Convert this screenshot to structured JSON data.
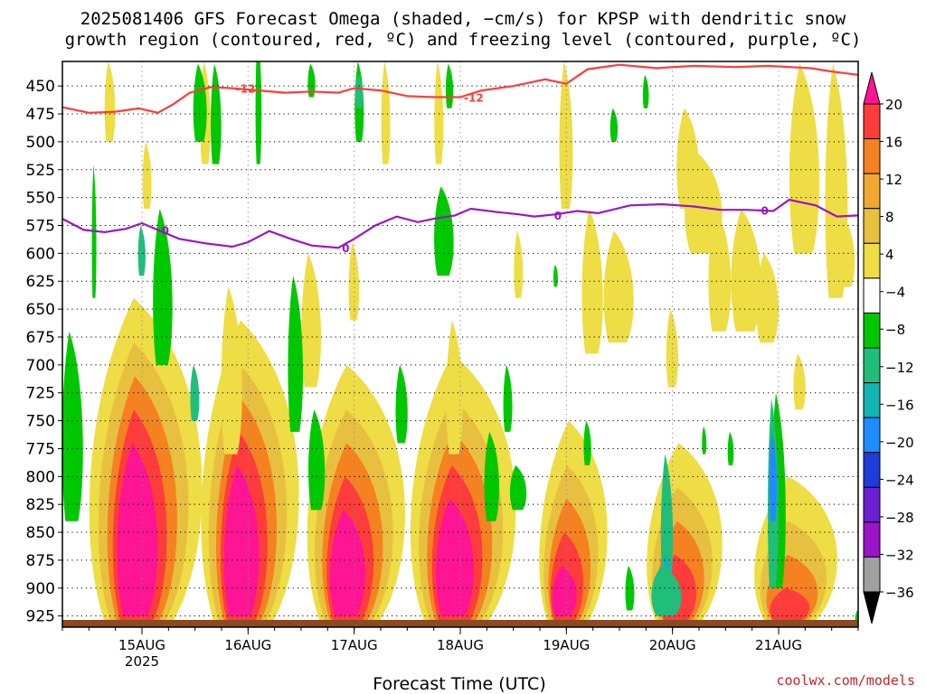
{
  "title": {
    "line1": "2025081406 GFS Forecast Omega (shaded, −cm/s) for KPSP with dendritic snow",
    "line2": "growth region (contoured, red, ºC) and freezing level (contoured, purple, ºC)"
  },
  "credit": "coolwx.com/models",
  "chart_data": {
    "type": "heatmap",
    "xlabel": "Forecast Time (UTC)",
    "ylabel": "",
    "x_ticks": [
      "15AUG",
      "16AUG",
      "17AUG",
      "18AUG",
      "19AUG",
      "20AUG",
      "21AUG"
    ],
    "x_tick_sub": {
      "15AUG": "2025"
    },
    "x_range_days": [
      14.25,
      21.75
    ],
    "y_ticks": [
      450,
      475,
      500,
      525,
      550,
      575,
      600,
      625,
      650,
      675,
      700,
      725,
      750,
      775,
      800,
      825,
      850,
      875,
      900,
      925
    ],
    "y_range": [
      428,
      935
    ],
    "y_reversed": true,
    "grid": "dotted",
    "colorbar": {
      "labels": [
        20,
        16,
        12,
        8,
        4,
        -4,
        -8,
        -12,
        -16,
        -20,
        -24,
        -28,
        -32,
        -36
      ],
      "colors": [
        "#ff1493",
        "#ff3c3c",
        "#f58220",
        "#f0a830",
        "#e8c040",
        "#eedd44",
        "#ffffff",
        "#00c800",
        "#1fbe7a",
        "#13b4b4",
        "#1e8cff",
        "#1e3cdc",
        "#6a1fd2",
        "#9b14c8",
        "#a0a0a0",
        "#000000"
      ]
    },
    "contours": [
      {
        "name": "dendritic snow growth region",
        "color": "#ff3c3c",
        "level": -12,
        "points": [
          [
            14.25,
            469
          ],
          [
            14.5,
            474
          ],
          [
            14.75,
            473
          ],
          [
            14.97,
            470
          ],
          [
            15.15,
            474
          ],
          [
            15.3,
            466
          ],
          [
            15.45,
            456
          ],
          [
            15.65,
            451
          ],
          [
            15.85,
            452
          ],
          [
            16.1,
            454
          ],
          [
            16.35,
            456
          ],
          [
            16.6,
            455
          ],
          [
            16.85,
            456
          ],
          [
            17.0,
            452
          ],
          [
            17.25,
            454
          ],
          [
            17.5,
            459
          ],
          [
            17.75,
            460
          ],
          [
            18.0,
            460
          ],
          [
            18.2,
            454
          ],
          [
            18.5,
            450
          ],
          [
            18.8,
            444
          ],
          [
            19.0,
            448
          ],
          [
            19.2,
            435
          ],
          [
            19.5,
            431
          ],
          [
            19.85,
            434
          ],
          [
            20.2,
            432
          ],
          [
            20.6,
            433
          ],
          [
            20.9,
            432
          ],
          [
            21.3,
            434
          ],
          [
            21.5,
            437
          ],
          [
            21.75,
            440
          ]
        ],
        "labels": [
          [
            15.85,
            "-12"
          ],
          [
            18.0,
            "-12"
          ]
        ]
      },
      {
        "name": "freezing level",
        "color": "#9b14c8",
        "level": 0,
        "points": [
          [
            14.25,
            569
          ],
          [
            14.45,
            579
          ],
          [
            14.65,
            581
          ],
          [
            14.85,
            578
          ],
          [
            15.0,
            573
          ],
          [
            15.15,
            579
          ],
          [
            15.35,
            587
          ],
          [
            15.6,
            591
          ],
          [
            15.85,
            594
          ],
          [
            16.0,
            590
          ],
          [
            16.2,
            580
          ],
          [
            16.4,
            587
          ],
          [
            16.6,
            593
          ],
          [
            16.85,
            595
          ],
          [
            17.0,
            587
          ],
          [
            17.2,
            575
          ],
          [
            17.4,
            567
          ],
          [
            17.6,
            572
          ],
          [
            17.75,
            569
          ],
          [
            17.95,
            566
          ],
          [
            18.1,
            560
          ],
          [
            18.35,
            563
          ],
          [
            18.55,
            565
          ],
          [
            18.7,
            567
          ],
          [
            18.9,
            565
          ],
          [
            19.1,
            562
          ],
          [
            19.3,
            564
          ],
          [
            19.6,
            557
          ],
          [
            19.9,
            556
          ],
          [
            20.2,
            558
          ],
          [
            20.45,
            561
          ],
          [
            20.7,
            561
          ],
          [
            20.95,
            562
          ],
          [
            21.1,
            552
          ],
          [
            21.35,
            557
          ],
          [
            21.55,
            567
          ],
          [
            21.75,
            566
          ]
        ],
        "labels": [
          [
            15.15,
            "0"
          ],
          [
            16.85,
            "0"
          ],
          [
            18.85,
            "0"
          ],
          [
            20.8,
            "0"
          ]
        ]
      }
    ]
  }
}
